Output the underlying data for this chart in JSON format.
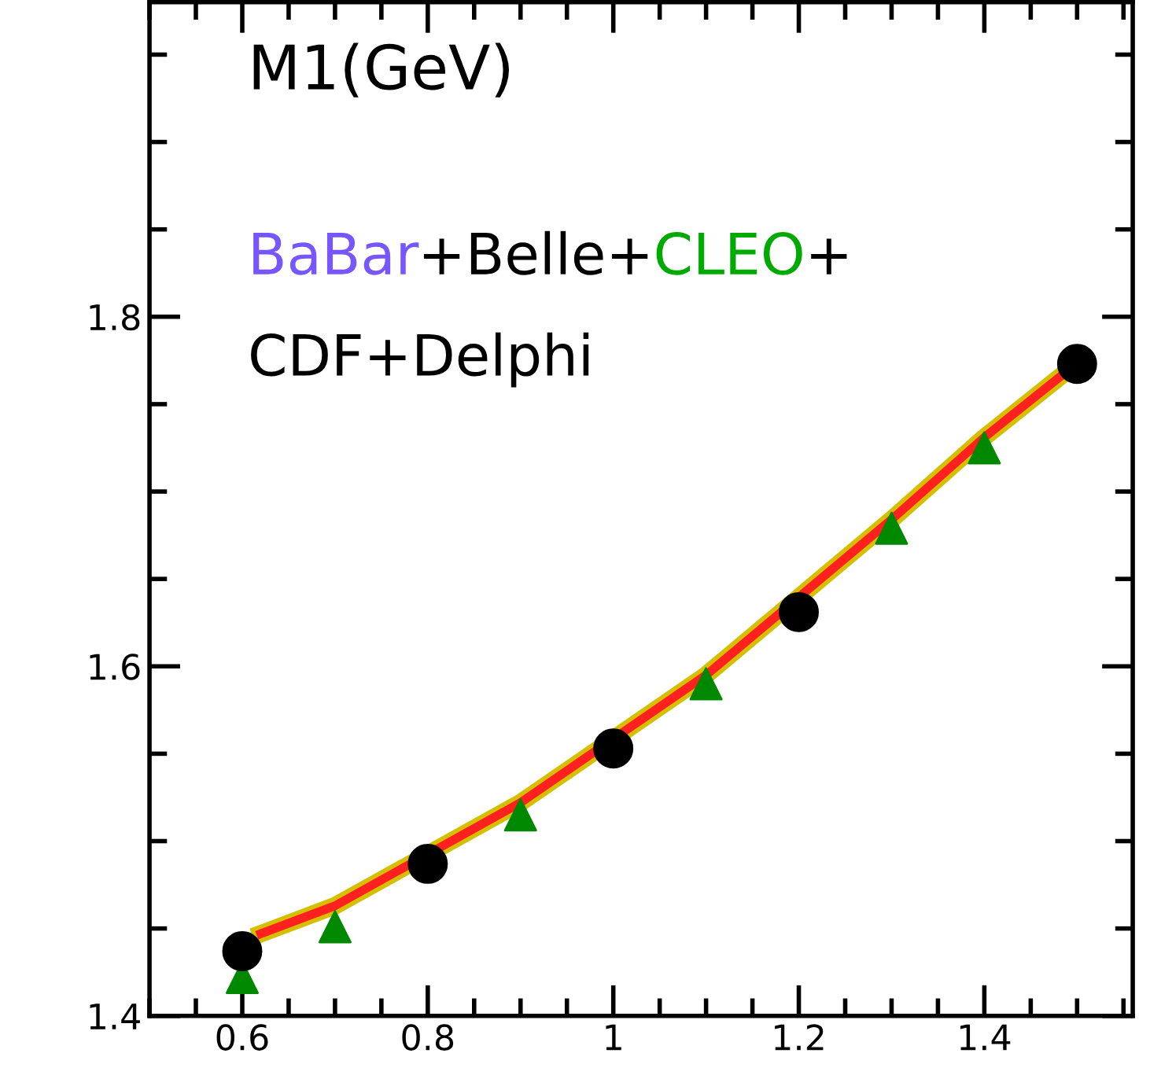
{
  "chart_data": {
    "type": "line",
    "annotations": [
      "M1(GeV)",
      "BaBar",
      "+Belle+",
      "CLEO",
      "+",
      "CDF+Delphi"
    ],
    "series": [
      {
        "color": "#ff2020",
        "x": [
          0.62,
          0.7,
          0.9,
          1.1,
          1.3,
          1.4,
          1.48
        ],
        "values": [
          1.447,
          1.463,
          1.522,
          1.595,
          1.684,
          1.731,
          1.765
        ],
        "marker": "none"
      },
      {
        "type": "scatter",
        "color": "#008800",
        "x": [
          0.6,
          0.7,
          0.8,
          0.9,
          1.0,
          1.1,
          1.2,
          1.3,
          1.4
        ],
        "values": [
          1.422,
          1.451,
          null,
          1.515,
          null,
          1.59,
          null,
          1.679,
          1.725
        ],
        "marker": "triangle"
      },
      {
        "type": "scatter",
        "color": "#000000",
        "x": [
          0.6,
          0.8,
          1.0,
          1.2,
          1.5
        ],
        "values": [
          1.437,
          1.487,
          1.553,
          1.631,
          1.773
        ],
        "marker": "circle"
      }
    ],
    "xlim": [
      0.5,
      1.56
    ],
    "ylim": [
      1.4,
      1.98
    ],
    "xticks": [
      0.6,
      0.8,
      1,
      1.2,
      1.4
    ],
    "yticks": [
      1.4,
      1.6,
      1.8
    ],
    "grid": false,
    "legend": false
  }
}
